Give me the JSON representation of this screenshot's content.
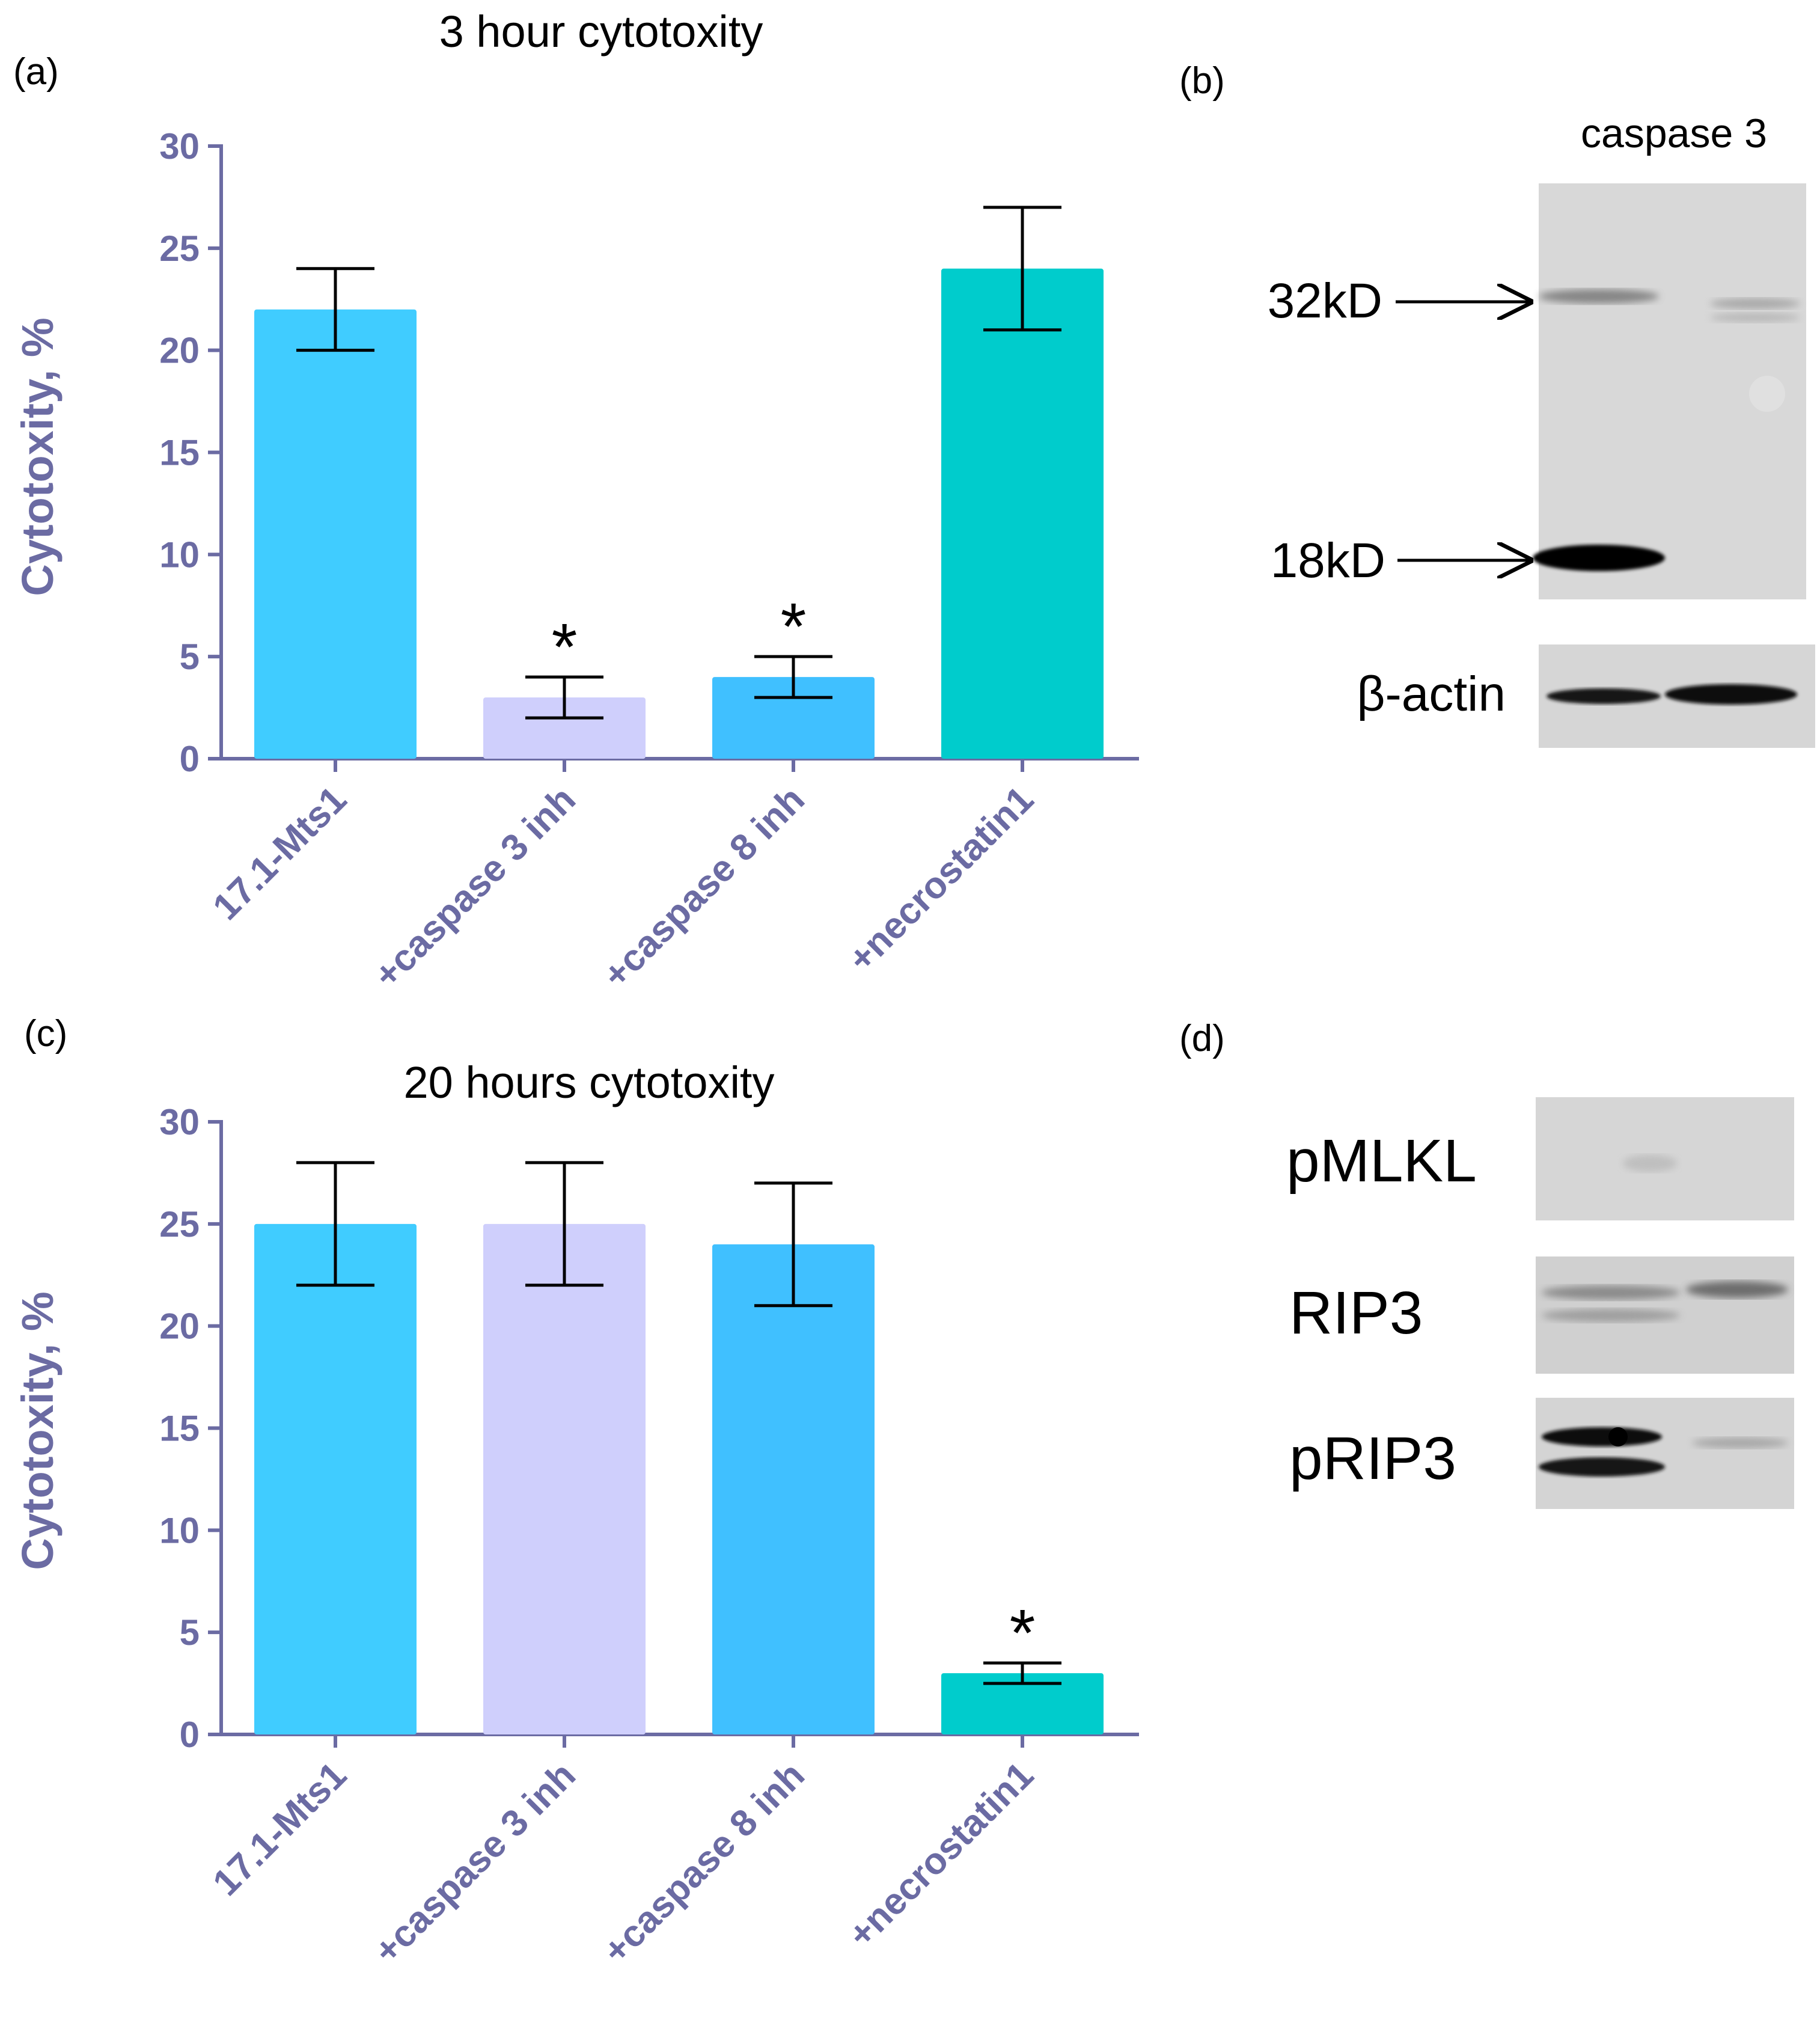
{
  "chart_data": [
    {
      "type": "bar",
      "panel": "(a)",
      "title": "3 hour cytotoxity",
      "ylabel": "Cytotoxity, %",
      "ylim": [
        0,
        30
      ],
      "yticks": [
        "0",
        "5",
        "10",
        "15",
        "20",
        "25",
        "30"
      ],
      "categories": [
        "17.1-Mts1",
        "+caspase 3 inh",
        "+caspase 8 inh",
        "+necrostatin1"
      ],
      "values": [
        22,
        3,
        4,
        24
      ],
      "errors": [
        2,
        1,
        1,
        3
      ],
      "significance": [
        "",
        "*",
        "*",
        ""
      ],
      "colors": [
        "#40ccff",
        "#cfcffc",
        "#40c0ff",
        "#00cccc"
      ]
    },
    {
      "type": "bar",
      "panel": "(c)",
      "title": "20 hours cytotoxity",
      "ylabel": "Cytotoxity, %",
      "ylim": [
        0,
        30
      ],
      "yticks": [
        "0",
        "5",
        "10",
        "15",
        "20",
        "25",
        "30"
      ],
      "categories": [
        "17.1-Mts1",
        "+caspase 3 inh",
        "+caspase 8 inh",
        "+necrostatin1"
      ],
      "values": [
        25,
        25,
        24,
        3
      ],
      "errors": [
        3,
        3,
        3,
        0.5
      ],
      "significance": [
        "",
        "",
        "",
        "*"
      ],
      "colors": [
        "#40ccff",
        "#cfcffc",
        "#40c0ff",
        "#00cccc"
      ]
    }
  ],
  "blot_b": {
    "panel": "(b)",
    "title": "caspase 3",
    "bands": [
      "32kD",
      "18kD"
    ],
    "loading_control": "β-actin"
  },
  "blot_d": {
    "panel": "(d)",
    "rows": [
      "pMLKL",
      "RIP3",
      "pRIP3"
    ]
  },
  "colors": {
    "axis": "#6b6ba3",
    "bar1": "#40ccff",
    "bar2": "#cfcffc",
    "bar3": "#40c0ff",
    "bar4": "#00cccc"
  }
}
